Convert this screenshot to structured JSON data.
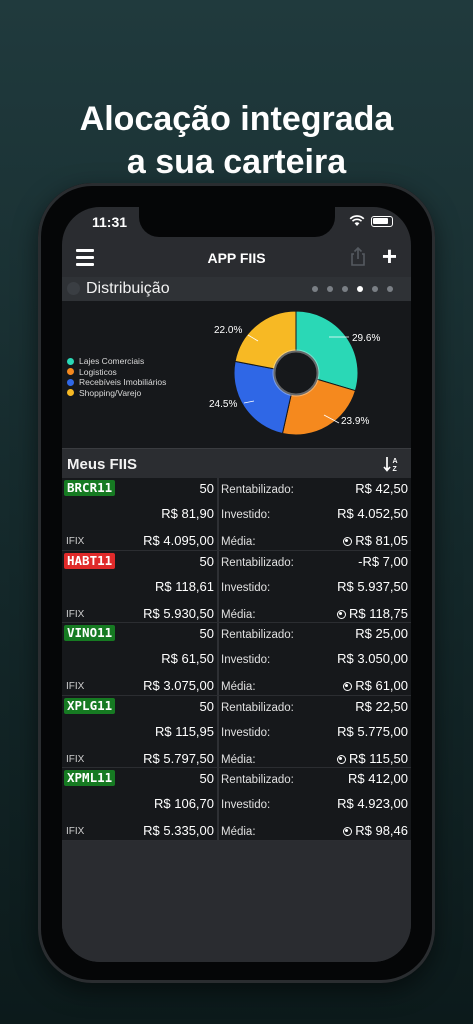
{
  "headline": {
    "line1": "Alocação integrada",
    "line2": "a sua carteira"
  },
  "status": {
    "time": "11:31"
  },
  "navbar": {
    "title": "APP FIIS",
    "menu_icon": "hamburger-icon",
    "share_icon": "share-icon",
    "add_label": "+"
  },
  "distribution": {
    "title": "Distribuição",
    "pages": 6,
    "active_page": 4
  },
  "chart_data": {
    "type": "pie",
    "style": "donut",
    "legend_position": "left",
    "slices": [
      {
        "label": "Lajes Comerciais",
        "value": 29.6,
        "display": "29.6%",
        "color": "#2ad8b6"
      },
      {
        "label": "Logisticos",
        "value": 23.9,
        "display": "23.9%",
        "color": "#f5891e"
      },
      {
        "label": "Recebíveis Imobiliários",
        "value": 24.5,
        "display": "24.5%",
        "color": "#2f67e6"
      },
      {
        "label": "Shopping/Varejo",
        "value": 22.0,
        "display": "22.0%",
        "color": "#f7b924"
      }
    ]
  },
  "fiis": {
    "title": "Meus FIIS",
    "labels": {
      "rentabilizado": "Rentabilizado:",
      "investido": "Investido:",
      "media": "Média:"
    },
    "rows": [
      {
        "ticker": "BRCR11",
        "ticker_color": "#167a22",
        "qty": "50",
        "price": "R$ 81,90",
        "index": "IFIX",
        "total": "R$ 4.095,00",
        "rentabilizado": "R$ 42,50",
        "investido": "R$ 4.052,50",
        "media": "R$ 81,05"
      },
      {
        "ticker": "HABT11",
        "ticker_color": "#e02a2a",
        "qty": "50",
        "price": "R$ 118,61",
        "index": "IFIX",
        "total": "R$ 5.930,50",
        "rentabilizado": "-R$ 7,00",
        "investido": "R$ 5.937,50",
        "media": "R$ 118,75"
      },
      {
        "ticker": "VINO11",
        "ticker_color": "#167a22",
        "qty": "50",
        "price": "R$ 61,50",
        "index": "IFIX",
        "total": "R$ 3.075,00",
        "rentabilizado": "R$ 25,00",
        "investido": "R$ 3.050,00",
        "media": "R$ 61,00"
      },
      {
        "ticker": "XPLG11",
        "ticker_color": "#167a22",
        "qty": "50",
        "price": "R$ 115,95",
        "index": "IFIX",
        "total": "R$ 5.797,50",
        "rentabilizado": "R$ 22,50",
        "investido": "R$ 5.775,00",
        "media": "R$ 115,50"
      },
      {
        "ticker": "XPML11",
        "ticker_color": "#167a22",
        "qty": "50",
        "price": "R$ 106,70",
        "index": "IFIX",
        "total": "R$ 5.335,00",
        "rentabilizado": "R$ 412,00",
        "investido": "R$ 4.923,00",
        "media": "R$ 98,46"
      }
    ]
  }
}
